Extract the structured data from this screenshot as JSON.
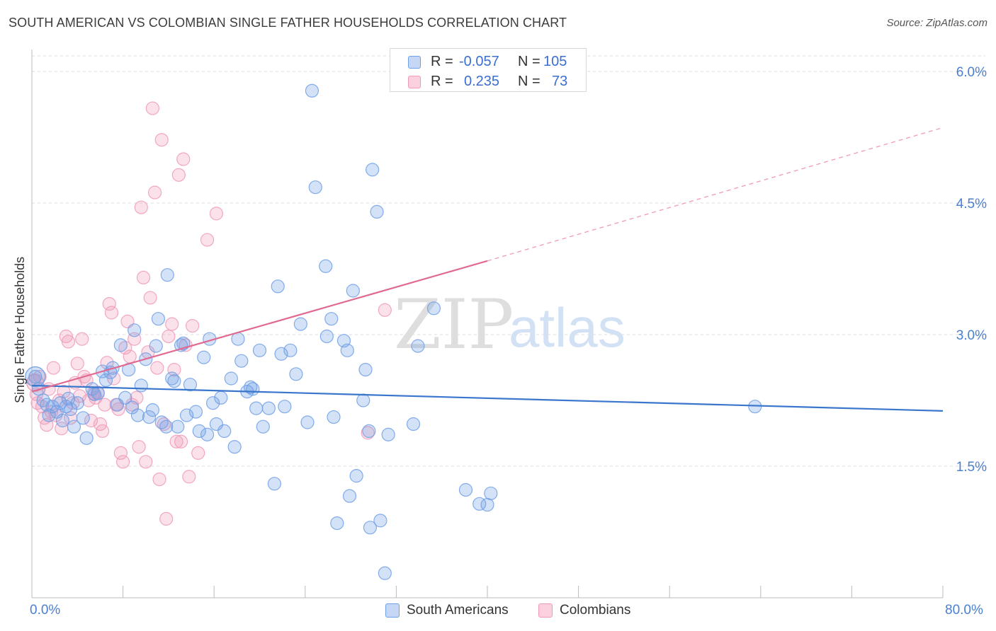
{
  "title": "SOUTH AMERICAN VS COLOMBIAN SINGLE FATHER HOUSEHOLDS CORRELATION CHART",
  "source": "Source: ZipAtlas.com",
  "watermark": {
    "zip": "ZIP",
    "atlas": "atlas"
  },
  "legend": {
    "row1": {
      "r_label": "R =",
      "r_value": "-0.057",
      "n_label": "N =",
      "n_value": "105"
    },
    "row2": {
      "r_label": "R =",
      "r_value": "0.235",
      "n_label": "N =",
      "n_value": "73"
    }
  },
  "bottom_legend": {
    "series1": "South Americans",
    "series2": "Colombians"
  },
  "colors": {
    "blue": "#6f9fe6",
    "blue_line": "#3a76cc",
    "pink": "#f09ab8",
    "pink_line": "#e06a92",
    "tick": "#4a7fd0"
  },
  "chart_data": {
    "type": "scatter",
    "title": "SOUTH AMERICAN VS COLOMBIAN SINGLE FATHER HOUSEHOLDS CORRELATION CHART",
    "xlabel": "",
    "ylabel": "Single Father Households",
    "xlim": [
      0,
      80
    ],
    "ylim": [
      0,
      6.25
    ],
    "x_tick_labels": [
      "0.0%",
      "80.0%"
    ],
    "y_ticks": [
      1.5,
      3.0,
      4.5,
      6.0
    ],
    "y_tick_labels": [
      "1.5%",
      "3.0%",
      "4.5%",
      "6.0%"
    ],
    "grid": "horizontal dashed",
    "legend_position": "top-center",
    "series": [
      {
        "name": "South Americans",
        "R": -0.057,
        "N": 105,
        "trend": {
          "x": [
            0,
            80
          ],
          "y": [
            2.42,
            2.13
          ]
        },
        "points": [
          [
            0.3,
            2.52
          ],
          [
            0.6,
            2.38
          ],
          [
            1.0,
            2.25
          ],
          [
            1.3,
            2.2
          ],
          [
            1.5,
            2.08
          ],
          [
            1.8,
            2.18
          ],
          [
            2.2,
            2.12
          ],
          [
            2.5,
            2.22
          ],
          [
            2.7,
            2.02
          ],
          [
            3.0,
            2.18
          ],
          [
            3.2,
            2.27
          ],
          [
            3.4,
            2.15
          ],
          [
            3.7,
            1.95
          ],
          [
            4.0,
            2.22
          ],
          [
            4.5,
            2.05
          ],
          [
            4.8,
            1.82
          ],
          [
            5.3,
            2.38
          ],
          [
            5.5,
            2.32
          ],
          [
            5.8,
            2.33
          ],
          [
            6.2,
            2.58
          ],
          [
            6.5,
            2.48
          ],
          [
            6.9,
            2.57
          ],
          [
            7.1,
            2.62
          ],
          [
            7.5,
            2.2
          ],
          [
            7.8,
            2.88
          ],
          [
            8.2,
            2.28
          ],
          [
            8.5,
            2.6
          ],
          [
            8.8,
            2.17
          ],
          [
            9.0,
            3.05
          ],
          [
            9.3,
            2.08
          ],
          [
            9.6,
            2.42
          ],
          [
            10.0,
            2.72
          ],
          [
            10.3,
            2.06
          ],
          [
            10.6,
            2.14
          ],
          [
            10.9,
            2.87
          ],
          [
            11.1,
            3.18
          ],
          [
            11.4,
            2.0
          ],
          [
            11.8,
            1.95
          ],
          [
            11.9,
            3.68
          ],
          [
            12.3,
            2.5
          ],
          [
            12.5,
            2.47
          ],
          [
            12.8,
            1.95
          ],
          [
            13.1,
            2.88
          ],
          [
            13.3,
            2.9
          ],
          [
            13.6,
            2.08
          ],
          [
            13.9,
            2.43
          ],
          [
            14.4,
            2.12
          ],
          [
            14.7,
            1.9
          ],
          [
            15.1,
            2.74
          ],
          [
            15.4,
            1.86
          ],
          [
            15.6,
            2.95
          ],
          [
            15.9,
            2.22
          ],
          [
            16.2,
            1.98
          ],
          [
            16.6,
            2.28
          ],
          [
            16.9,
            1.9
          ],
          [
            17.5,
            2.5
          ],
          [
            17.8,
            1.72
          ],
          [
            18.1,
            2.95
          ],
          [
            18.4,
            2.7
          ],
          [
            18.9,
            2.35
          ],
          [
            19.2,
            2.4
          ],
          [
            19.4,
            2.38
          ],
          [
            19.7,
            2.16
          ],
          [
            20.0,
            2.82
          ],
          [
            20.3,
            1.95
          ],
          [
            20.8,
            2.16
          ],
          [
            21.3,
            1.3
          ],
          [
            21.6,
            3.55
          ],
          [
            21.9,
            2.78
          ],
          [
            22.2,
            2.18
          ],
          [
            22.7,
            2.82
          ],
          [
            23.2,
            2.55
          ],
          [
            23.6,
            3.12
          ],
          [
            24.2,
            2.0
          ],
          [
            24.6,
            5.78
          ],
          [
            24.9,
            4.68
          ],
          [
            25.8,
            3.78
          ],
          [
            25.9,
            2.98
          ],
          [
            26.3,
            3.18
          ],
          [
            26.5,
            2.06
          ],
          [
            26.8,
            0.85
          ],
          [
            27.4,
            2.93
          ],
          [
            27.7,
            2.82
          ],
          [
            27.9,
            1.16
          ],
          [
            28.2,
            3.5
          ],
          [
            28.5,
            1.39
          ],
          [
            29.1,
            2.25
          ],
          [
            29.3,
            2.6
          ],
          [
            29.6,
            1.9
          ],
          [
            29.7,
            0.8
          ],
          [
            29.9,
            4.88
          ],
          [
            30.3,
            4.4
          ],
          [
            30.6,
            0.88
          ],
          [
            31.0,
            0.28
          ],
          [
            31.3,
            1.86
          ],
          [
            33.5,
            1.98
          ],
          [
            33.9,
            2.87
          ],
          [
            35.3,
            3.3
          ],
          [
            38.1,
            1.23
          ],
          [
            39.3,
            1.07
          ],
          [
            40.0,
            1.06
          ],
          [
            40.3,
            1.19
          ],
          [
            63.5,
            2.18
          ]
        ]
      },
      {
        "name": "Colombians",
        "R": 0.235,
        "N": 73,
        "trend": {
          "x": [
            0,
            40
          ],
          "y": [
            2.35,
            3.84
          ]
        },
        "trend_dashed": {
          "x": [
            40,
            80
          ],
          "y": [
            3.84,
            5.36
          ]
        },
        "points": [
          [
            0.2,
            2.48
          ],
          [
            0.4,
            2.32
          ],
          [
            0.5,
            2.22
          ],
          [
            0.7,
            2.52
          ],
          [
            0.9,
            2.18
          ],
          [
            1.1,
            2.05
          ],
          [
            1.3,
            1.97
          ],
          [
            1.5,
            2.38
          ],
          [
            1.7,
            2.12
          ],
          [
            1.9,
            2.62
          ],
          [
            2.1,
            2.08
          ],
          [
            2.4,
            2.25
          ],
          [
            2.6,
            1.93
          ],
          [
            2.8,
            2.35
          ],
          [
            3.0,
            2.98
          ],
          [
            3.2,
            2.92
          ],
          [
            3.4,
            2.05
          ],
          [
            3.6,
            2.22
          ],
          [
            3.8,
            2.45
          ],
          [
            4.0,
            2.67
          ],
          [
            4.2,
            2.3
          ],
          [
            4.4,
            2.95
          ],
          [
            4.6,
            2.52
          ],
          [
            4.8,
            2.48
          ],
          [
            5.0,
            2.25
          ],
          [
            5.2,
            2.02
          ],
          [
            5.4,
            2.33
          ],
          [
            5.6,
            2.28
          ],
          [
            5.8,
            2.34
          ],
          [
            6.0,
            1.98
          ],
          [
            6.2,
            1.9
          ],
          [
            6.4,
            2.2
          ],
          [
            6.6,
            2.68
          ],
          [
            6.8,
            3.35
          ],
          [
            7.0,
            3.25
          ],
          [
            7.2,
            2.5
          ],
          [
            7.4,
            2.2
          ],
          [
            7.6,
            2.15
          ],
          [
            7.8,
            1.65
          ],
          [
            8.0,
            1.55
          ],
          [
            8.2,
            2.85
          ],
          [
            8.4,
            3.15
          ],
          [
            8.6,
            2.75
          ],
          [
            8.8,
            2.2
          ],
          [
            9.0,
            2.95
          ],
          [
            9.2,
            2.28
          ],
          [
            9.4,
            1.72
          ],
          [
            9.6,
            4.45
          ],
          [
            9.8,
            3.65
          ],
          [
            10.0,
            1.55
          ],
          [
            10.2,
            2.8
          ],
          [
            10.4,
            3.42
          ],
          [
            10.6,
            5.58
          ],
          [
            10.8,
            4.62
          ],
          [
            11.0,
            2.62
          ],
          [
            11.2,
            1.35
          ],
          [
            11.4,
            5.22
          ],
          [
            11.6,
            1.98
          ],
          [
            11.8,
            0.9
          ],
          [
            12.0,
            2.98
          ],
          [
            12.3,
            3.12
          ],
          [
            12.5,
            2.6
          ],
          [
            12.7,
            1.78
          ],
          [
            12.9,
            4.82
          ],
          [
            13.1,
            1.78
          ],
          [
            13.3,
            5.0
          ],
          [
            13.5,
            2.88
          ],
          [
            13.8,
            1.38
          ],
          [
            14.1,
            3.1
          ],
          [
            14.6,
            1.65
          ],
          [
            15.4,
            4.08
          ],
          [
            16.2,
            4.38
          ],
          [
            29.5,
            1.88
          ],
          [
            31.0,
            3.28
          ]
        ]
      }
    ]
  }
}
